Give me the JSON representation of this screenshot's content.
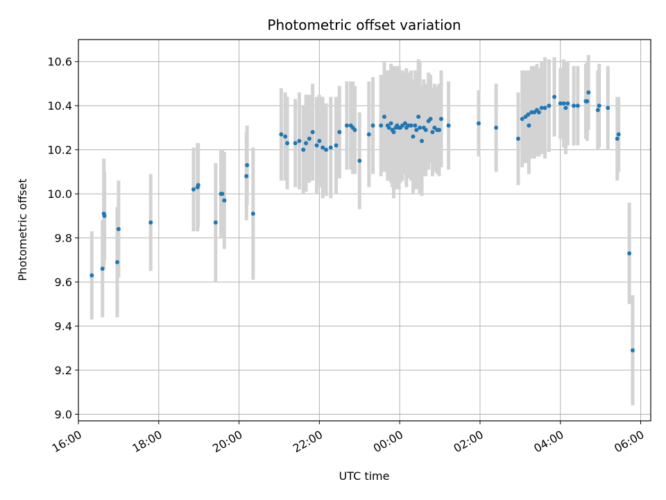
{
  "chart_data": {
    "type": "scatter",
    "title": "Photometric offset variation",
    "xlabel": "UTC time",
    "ylabel": "Photometric offset",
    "grid": true,
    "xlim": [
      "16:00",
      "30:15"
    ],
    "ylim": [
      8.97,
      10.7
    ],
    "x_ticks": [
      "16:00",
      "18:00",
      "20:00",
      "22:00",
      "00:00",
      "02:00",
      "04:00",
      "06:00"
    ],
    "y_ticks": [
      "9.0",
      "9.2",
      "9.4",
      "9.6",
      "9.8",
      "10.0",
      "10.2",
      "10.4",
      "10.6"
    ],
    "colors": {
      "point": "#1f77b4",
      "errorbar": "#d3d3d3",
      "grid": "#b0b0b0"
    },
    "series": [
      {
        "x": [
          "16:20",
          "16:36",
          "16:38",
          "16:39",
          "16:58",
          "17:00",
          "17:48",
          "18:52",
          "18:58",
          "18:59",
          "19:25",
          "19:33",
          "19:35",
          "19:38",
          "20:11",
          "20:12",
          "20:21",
          "21:03",
          "21:09",
          "21:12",
          "21:24",
          "21:30",
          "21:36",
          "21:40",
          "21:45",
          "21:50",
          "21:56",
          "22:00",
          "22:05",
          "22:10",
          "22:17",
          "22:25",
          "22:30",
          "22:41",
          "22:47",
          "22:50",
          "22:53",
          "23:00",
          "23:14",
          "23:20",
          "23:32",
          "23:37",
          "23:42",
          "23:44",
          "23:47",
          "23:49",
          "23:51",
          "23:54",
          "23:56",
          "23:59",
          "00:01",
          "00:04",
          "00:08",
          "00:10",
          "00:13",
          "00:17",
          "00:20",
          "00:23",
          "00:25",
          "00:28",
          "00:30",
          "00:33",
          "00:36",
          "00:39",
          "00:43",
          "00:46",
          "00:49",
          "00:52",
          "00:56",
          "00:59",
          "01:02",
          "01:13",
          "01:58",
          "02:24",
          "02:57",
          "03:03",
          "03:08",
          "03:12",
          "03:13",
          "03:17",
          "03:21",
          "03:25",
          "03:28",
          "03:32",
          "03:37",
          "03:43",
          "03:51",
          "04:00",
          "04:05",
          "04:08",
          "04:11",
          "04:20",
          "04:26",
          "04:38",
          "04:40",
          "04:42",
          "04:56",
          "04:58",
          "05:11",
          "05:25",
          "05:27",
          "05:43",
          "05:48"
        ],
        "y": [
          9.63,
          9.66,
          9.91,
          9.9,
          9.69,
          9.84,
          9.87,
          10.02,
          10.03,
          10.04,
          9.87,
          10.0,
          10.0,
          9.97,
          10.08,
          10.13,
          9.91,
          10.27,
          10.26,
          10.23,
          10.23,
          10.24,
          10.2,
          10.23,
          10.25,
          10.28,
          10.22,
          10.24,
          10.21,
          10.2,
          10.21,
          10.22,
          10.28,
          10.31,
          10.31,
          10.3,
          10.29,
          10.15,
          10.27,
          10.31,
          10.31,
          10.35,
          10.31,
          10.3,
          10.32,
          10.29,
          10.28,
          10.3,
          10.31,
          10.3,
          10.3,
          10.31,
          10.32,
          10.3,
          10.31,
          10.31,
          10.26,
          10.31,
          10.29,
          10.35,
          10.3,
          10.24,
          10.3,
          10.29,
          10.33,
          10.34,
          10.28,
          10.3,
          10.29,
          10.29,
          10.34,
          10.31,
          10.32,
          10.3,
          10.25,
          10.34,
          10.35,
          10.36,
          10.31,
          10.37,
          10.37,
          10.38,
          10.37,
          10.39,
          10.39,
          10.4,
          10.44,
          10.41,
          10.41,
          10.39,
          10.41,
          10.4,
          10.4,
          10.42,
          10.42,
          10.46,
          10.38,
          10.4,
          10.39,
          10.25,
          10.27,
          9.73,
          9.29
        ],
        "yerr": [
          0.2,
          0.22,
          0.25,
          0.2,
          0.25,
          0.22,
          0.22,
          0.19,
          0.2,
          0.19,
          0.27,
          0.2,
          0.2,
          0.22,
          0.2,
          0.18,
          0.3,
          0.21,
          0.2,
          0.21,
          0.2,
          0.22,
          0.2,
          0.22,
          0.2,
          0.22,
          0.22,
          0.21,
          0.23,
          0.21,
          0.23,
          0.22,
          0.21,
          0.2,
          0.2,
          0.21,
          0.2,
          0.22,
          0.24,
          0.22,
          0.23,
          0.25,
          0.25,
          0.24,
          0.27,
          0.26,
          0.3,
          0.28,
          0.26,
          0.28,
          0.25,
          0.25,
          0.23,
          0.27,
          0.24,
          0.25,
          0.26,
          0.25,
          0.27,
          0.26,
          0.3,
          0.25,
          0.22,
          0.21,
          0.22,
          0.2,
          0.2,
          0.2,
          0.2,
          0.21,
          0.22,
          0.2,
          0.15,
          0.2,
          0.21,
          0.22,
          0.21,
          0.2,
          0.22,
          0.21,
          0.21,
          0.21,
          0.2,
          0.21,
          0.23,
          0.21,
          0.18,
          0.16,
          0.2,
          0.21,
          0.19,
          0.18,
          0.18,
          0.17,
          0.18,
          0.17,
          0.18,
          0.19,
          0.19,
          0.19,
          0.17,
          0.23,
          0.25
        ]
      }
    ]
  }
}
